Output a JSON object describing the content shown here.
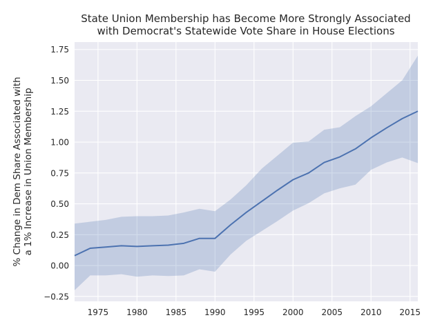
{
  "chart_data": {
    "type": "line",
    "title_lines": [
      "State Union Membership has Become More Strongly Associated",
      "with Democrat's Statewide Vote Share in House Elections"
    ],
    "xlabel": "",
    "ylabel_lines": [
      "% Change in Dem Share Associated with",
      "a 1% Increase in Union Membership"
    ],
    "xlim": [
      1972,
      2016
    ],
    "ylim": [
      -0.29,
      1.81
    ],
    "xticks": [
      1975,
      1980,
      1985,
      1990,
      1995,
      2000,
      2005,
      2010,
      2015
    ],
    "xtick_labels": [
      "1975",
      "1980",
      "1985",
      "1990",
      "1995",
      "2000",
      "2005",
      "2010",
      "2015"
    ],
    "yticks": [
      -0.25,
      0.0,
      0.25,
      0.5,
      0.75,
      1.0,
      1.25,
      1.5,
      1.75
    ],
    "ytick_labels": [
      "−0.25",
      "0.00",
      "0.25",
      "0.50",
      "0.75",
      "1.00",
      "1.25",
      "1.50",
      "1.75"
    ],
    "grid": true,
    "colors": {
      "background": "#eaeaf2",
      "grid": "#ffffff",
      "line": "#4c72b0",
      "band": "#4c72b0"
    },
    "x": [
      1972,
      1974,
      1976,
      1978,
      1980,
      1982,
      1984,
      1986,
      1988,
      1990,
      1992,
      1994,
      1996,
      1998,
      2000,
      2002,
      2004,
      2006,
      2008,
      2010,
      2012,
      2014,
      2016
    ],
    "series": [
      {
        "values": [
          0.08,
          0.14,
          0.15,
          0.16,
          0.155,
          0.16,
          0.165,
          0.18,
          0.22,
          0.22,
          0.33,
          0.43,
          0.52,
          0.61,
          0.695,
          0.75,
          0.835,
          0.88,
          0.945,
          1.035,
          1.115,
          1.19,
          1.25
        ],
        "lower": [
          -0.2,
          -0.08,
          -0.08,
          -0.07,
          -0.09,
          -0.08,
          -0.085,
          -0.08,
          -0.03,
          -0.05,
          0.09,
          0.2,
          0.28,
          0.36,
          0.445,
          0.505,
          0.585,
          0.625,
          0.655,
          0.775,
          0.835,
          0.875,
          0.83
        ],
        "upper": [
          0.34,
          0.355,
          0.37,
          0.395,
          0.4,
          0.4,
          0.405,
          0.43,
          0.46,
          0.44,
          0.535,
          0.65,
          0.785,
          0.89,
          0.995,
          1.005,
          1.1,
          1.12,
          1.21,
          1.29,
          1.395,
          1.5,
          1.7
        ]
      }
    ]
  }
}
